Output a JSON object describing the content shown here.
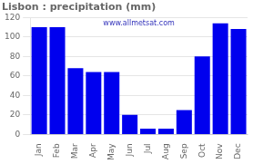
{
  "chart_data": {
    "type": "bar",
    "title": "Lisbon : precipitation (mm)",
    "categories": [
      "Jan",
      "Feb",
      "Mar",
      "Apr",
      "May",
      "Jun",
      "Jul",
      "Aug",
      "Sep",
      "Oct",
      "Nov",
      "Dec"
    ],
    "values": [
      110,
      110,
      68,
      64,
      64,
      20,
      6,
      6,
      25,
      80,
      114,
      108
    ],
    "color": "#0000EE",
    "ylim": [
      0,
      120
    ],
    "yticks": [
      0,
      20,
      40,
      60,
      80,
      100,
      120
    ],
    "grid": true,
    "annotations": [
      "www.allmetsat.com"
    ]
  }
}
